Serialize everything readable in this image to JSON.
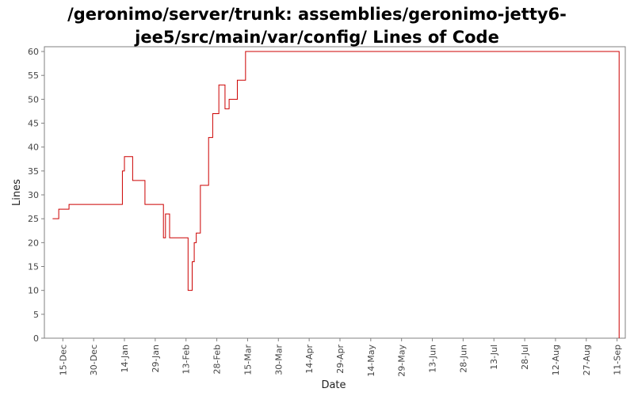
{
  "title_line1": "/geronimo/server/trunk: assemblies/geronimo-jetty6-",
  "title_line2": "jee5/src/main/var/config/ Lines of Code",
  "chart_data": {
    "type": "line",
    "title": "/geronimo/server/trunk: assemblies/geronimo-jetty6-jee5/src/main/var/config/ Lines of Code",
    "xlabel": "Date",
    "ylabel": "Lines",
    "ylim": [
      0,
      61
    ],
    "yticks": [
      0,
      5,
      10,
      15,
      20,
      25,
      30,
      35,
      40,
      45,
      50,
      55,
      60
    ],
    "xlim": [
      "2006-12-06",
      "2007-09-15"
    ],
    "xticks": [
      "15-Dec",
      "30-Dec",
      "14-Jan",
      "29-Jan",
      "13-Feb",
      "28-Feb",
      "15-Mar",
      "30-Mar",
      "14-Apr",
      "29-Apr",
      "14-May",
      "29-May",
      "13-Jun",
      "28-Jun",
      "13-Jul",
      "28-Jul",
      "12-Aug",
      "27-Aug",
      "11-Sep"
    ],
    "step": true,
    "grid": false,
    "legend": "none",
    "series_color": "#cc0000",
    "series": [
      {
        "x": [
          "2006-12-10",
          "2006-12-13",
          "2006-12-16",
          "2006-12-18",
          "2007-01-13",
          "2007-01-14",
          "2007-01-18",
          "2007-01-24",
          "2007-02-02",
          "2007-02-03",
          "2007-02-04",
          "2007-02-05",
          "2007-02-07",
          "2007-02-14",
          "2007-02-16",
          "2007-02-17",
          "2007-02-18",
          "2007-02-20",
          "2007-02-24",
          "2007-02-26",
          "2007-03-01",
          "2007-03-04",
          "2007-03-06",
          "2007-03-10",
          "2007-03-14",
          "2007-03-18",
          "2007-09-12",
          "2007-09-12"
        ],
        "y": [
          25,
          27,
          27,
          28,
          35,
          38,
          33,
          28,
          21,
          26,
          26,
          21,
          21,
          10,
          16,
          20,
          22,
          32,
          42,
          47,
          53,
          48,
          50,
          54,
          60,
          60,
          60,
          0
        ]
      }
    ]
  }
}
